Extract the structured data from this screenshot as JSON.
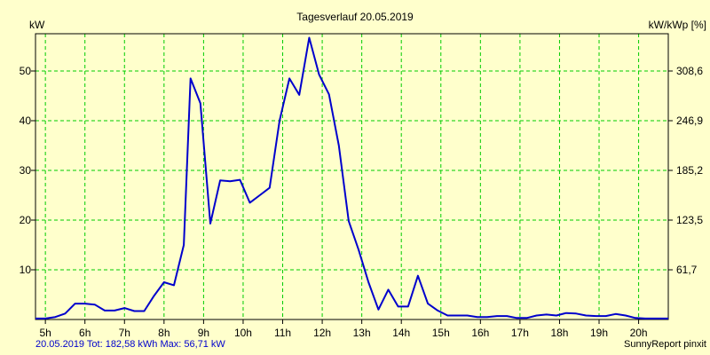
{
  "chart_data": {
    "type": "line",
    "title": "Tagesverlauf 20.05.2019",
    "ylabel_left": "kW",
    "ylabel_right": "kW/kWp [%]",
    "ylim": [
      0,
      57.5
    ],
    "y_ticks_left": [
      10,
      20,
      30,
      40,
      50
    ],
    "y_ticks_right": [
      "61,7",
      "123,5",
      "185,2",
      "246,9",
      "308,6"
    ],
    "x_ticks": [
      "5h",
      "6h",
      "7h",
      "8h",
      "9h",
      "10h",
      "11h",
      "12h",
      "13h",
      "14h",
      "15h",
      "16h",
      "17h",
      "18h",
      "19h",
      "20h"
    ],
    "xlim": [
      4.75,
      20.75
    ],
    "grid": true,
    "line_color": "#0000CC",
    "grid_color": "#00CC00",
    "series": [
      {
        "x": [
          4.75,
          5.0,
          5.25,
          5.5,
          5.75,
          6.0,
          6.25,
          6.5,
          6.75,
          7.0,
          7.25,
          7.5,
          7.75,
          8.0,
          8.25,
          8.5,
          8.67,
          8.92,
          9.17,
          9.42,
          9.67,
          9.92,
          10.17,
          10.42,
          10.67,
          10.92,
          11.17,
          11.42,
          11.67,
          11.92,
          12.17,
          12.42,
          12.67,
          12.92,
          13.17,
          13.42,
          13.67,
          13.92,
          14.17,
          14.42,
          14.67,
          14.92,
          15.17,
          15.42,
          15.67,
          15.92,
          16.17,
          16.42,
          16.67,
          16.92,
          17.17,
          17.42,
          17.67,
          17.92,
          18.17,
          18.42,
          18.67,
          18.92,
          19.17,
          19.42,
          19.67,
          19.92,
          20.17,
          20.42,
          20.75
        ],
        "y": [
          0.2,
          0.2,
          0.5,
          1.2,
          3.2,
          3.2,
          3.0,
          1.8,
          1.8,
          2.3,
          1.7,
          1.7,
          4.8,
          7.5,
          6.9,
          15.0,
          48.5,
          43.5,
          19.3,
          28.0,
          27.8,
          28.1,
          23.5,
          25.0,
          26.5,
          40.0,
          48.5,
          45.2,
          56.7,
          49.3,
          45.3,
          35.0,
          19.8,
          14.0,
          7.5,
          2.0,
          6.0,
          2.6,
          2.6,
          8.8,
          3.2,
          1.8,
          0.8,
          0.8,
          0.8,
          0.5,
          0.5,
          0.7,
          0.7,
          0.3,
          0.3,
          0.8,
          1.0,
          0.8,
          1.3,
          1.2,
          0.8,
          0.7,
          0.7,
          1.1,
          0.8,
          0.3,
          0.2,
          0.2,
          0.2
        ]
      }
    ]
  },
  "footer": {
    "left": "20.05.2019 Tot: 182,58 kWh Max: 56,71 kW",
    "right": "SunnyReport pinxit"
  }
}
